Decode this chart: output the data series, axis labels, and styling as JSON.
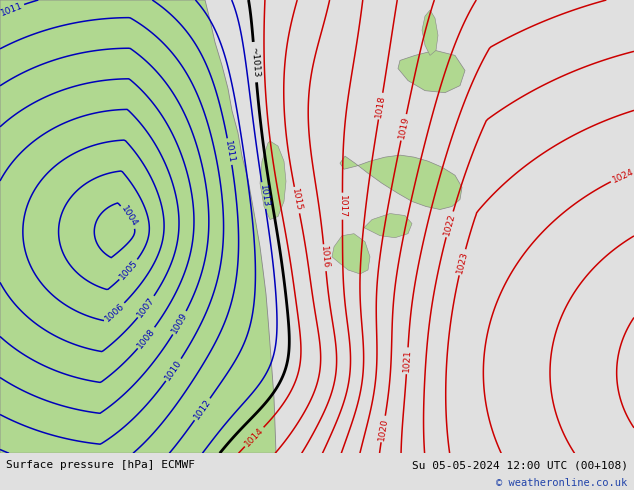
{
  "title_left": "Surface pressure [hPa] ECMWF",
  "title_right": "Su 05-05-2024 12:00 UTC (00+108)",
  "copyright": "© weatheronline.co.uk",
  "bg_color": "#e0e0e0",
  "land_green_color": "#b0d890",
  "isobar_red_color": "#cc0000",
  "isobar_blue_color": "#0000bb",
  "isobar_black_color": "#000000",
  "bottom_bar_color": "#c8d4e8",
  "figwidth": 6.34,
  "figheight": 4.9,
  "dpi": 100,
  "font_size_bottom": 8.0
}
